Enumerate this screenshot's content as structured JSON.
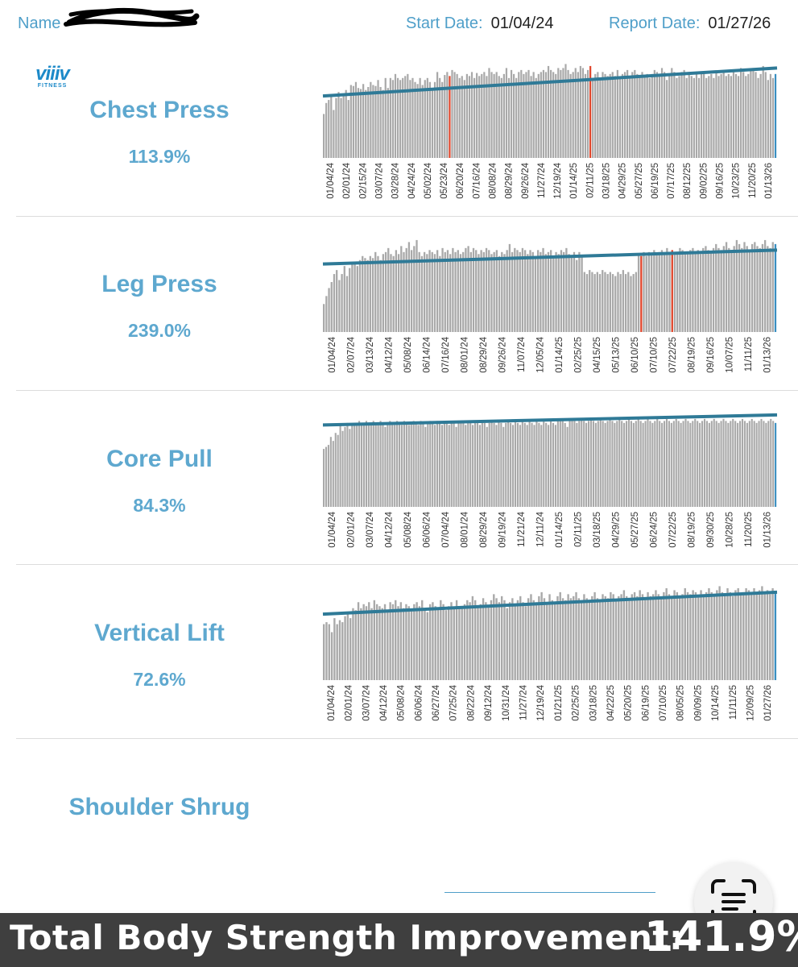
{
  "header": {
    "name_label": "Name",
    "start_label": "Start Date:",
    "start_value": "01/04/24",
    "report_label": "Report Date:",
    "report_value": "01/27/26"
  },
  "logo": {
    "line1": "viiiv",
    "line2": "FITNESS"
  },
  "colors": {
    "accent": "#5ea8cf",
    "bar": "#a9a9a9",
    "trend": "#2f7a97",
    "highlight": "#e0452b",
    "last_bar": "#3a8fc1",
    "footer_bg": "#3f3f3f"
  },
  "exercises": [
    {
      "name": "Chest Press",
      "improvement": "113.9%"
    },
    {
      "name": "Leg Press",
      "improvement": "239.0%"
    },
    {
      "name": "Core Pull",
      "improvement": "84.3%"
    },
    {
      "name": "Vertical Lift",
      "improvement": "72.6%"
    },
    {
      "name": "Shoulder Shrug"
    }
  ],
  "chart_data": [
    {
      "type": "bar",
      "title": "Chest Press",
      "tick_labels": [
        "01/04/24",
        "02/01/24",
        "02/15/24",
        "03/07/24",
        "03/28/24",
        "04/24/24",
        "05/02/24",
        "05/23/24",
        "06/20/24",
        "07/16/24",
        "08/08/24",
        "08/29/24",
        "09/26/24",
        "11/27/24",
        "12/19/24",
        "01/14/25",
        "02/11/25",
        "03/18/25",
        "04/29/25",
        "05/27/25",
        "06/19/25",
        "07/17/25",
        "08/12/25",
        "09/02/25",
        "09/16/25",
        "10/23/25",
        "11/20/25",
        "01/13/26"
      ],
      "trend": [
        0.62,
        0.9
      ],
      "highlights": [
        0.28,
        0.59
      ],
      "values": [
        0.44,
        0.55,
        0.58,
        0.63,
        0.48,
        0.6,
        0.66,
        0.6,
        0.64,
        0.68,
        0.58,
        0.73,
        0.72,
        0.76,
        0.7,
        0.69,
        0.74,
        0.68,
        0.71,
        0.76,
        0.73,
        0.72,
        0.78,
        0.71,
        0.68,
        0.8,
        0.7,
        0.8,
        0.78,
        0.84,
        0.8,
        0.78,
        0.8,
        0.82,
        0.84,
        0.78,
        0.8,
        0.76,
        0.74,
        0.8,
        0.73,
        0.78,
        0.8,
        0.76,
        0.7,
        0.76,
        0.86,
        0.8,
        0.76,
        0.83,
        0.86,
        0.82,
        0.88,
        0.86,
        0.84,
        0.8,
        0.82,
        0.78,
        0.84,
        0.82,
        0.86,
        0.8,
        0.85,
        0.82,
        0.84,
        0.86,
        0.82,
        0.9,
        0.86,
        0.84,
        0.86,
        0.82,
        0.8,
        0.84,
        0.9,
        0.8,
        0.88,
        0.84,
        0.8,
        0.86,
        0.88,
        0.84,
        0.86,
        0.88,
        0.82,
        0.86,
        0.8,
        0.84,
        0.86,
        0.88,
        0.86,
        0.92,
        0.88,
        0.86,
        0.84,
        0.9,
        0.88,
        0.9,
        0.94,
        0.88,
        0.84,
        0.86,
        0.9,
        0.86,
        0.92,
        0.9,
        0.84,
        0.88,
        0.92,
        0.8,
        0.84,
        0.86,
        0.8,
        0.86,
        0.84,
        0.82,
        0.84,
        0.86,
        0.82,
        0.88,
        0.8,
        0.84,
        0.86,
        0.88,
        0.8,
        0.86,
        0.88,
        0.84,
        0.82,
        0.86,
        0.82,
        0.84,
        0.8,
        0.84,
        0.88,
        0.86,
        0.84,
        0.9,
        0.86,
        0.78,
        0.84,
        0.9,
        0.86,
        0.8,
        0.82,
        0.86,
        0.88,
        0.8,
        0.86,
        0.82,
        0.8,
        0.84,
        0.8,
        0.86,
        0.84,
        0.8,
        0.82,
        0.84,
        0.8,
        0.86,
        0.82,
        0.84,
        0.86,
        0.82,
        0.84,
        0.82,
        0.86,
        0.84,
        0.82,
        0.9,
        0.86,
        0.82,
        0.84,
        0.88,
        0.9,
        0.86,
        0.8,
        0.84,
        0.92,
        0.86,
        0.78,
        0.84,
        0.8,
        0.84
      ]
    },
    {
      "type": "bar",
      "title": "Leg Press",
      "tick_labels": [
        "01/04/24",
        "02/07/24",
        "03/13/24",
        "04/12/24",
        "05/08/24",
        "06/14/24",
        "07/16/24",
        "08/01/24",
        "08/29/24",
        "09/26/24",
        "11/07/24",
        "12/05/24",
        "01/14/25",
        "02/25/25",
        "04/15/25",
        "05/13/25",
        "06/10/25",
        "07/10/25",
        "07/22/25",
        "08/19/25",
        "09/16/25",
        "10/07/25",
        "11/11/25",
        "01/13/26"
      ],
      "trend": [
        0.68,
        0.82
      ],
      "highlights": [
        0.705,
        0.771
      ],
      "values": [
        0.28,
        0.36,
        0.44,
        0.5,
        0.58,
        0.62,
        0.52,
        0.58,
        0.66,
        0.56,
        0.64,
        0.68,
        0.7,
        0.66,
        0.72,
        0.76,
        0.74,
        0.72,
        0.76,
        0.74,
        0.8,
        0.76,
        0.72,
        0.78,
        0.8,
        0.84,
        0.78,
        0.76,
        0.82,
        0.78,
        0.86,
        0.8,
        0.84,
        0.9,
        0.82,
        0.86,
        0.92,
        0.8,
        0.76,
        0.8,
        0.78,
        0.82,
        0.8,
        0.78,
        0.82,
        0.76,
        0.84,
        0.8,
        0.82,
        0.78,
        0.84,
        0.8,
        0.82,
        0.78,
        0.8,
        0.84,
        0.86,
        0.8,
        0.84,
        0.82,
        0.78,
        0.82,
        0.8,
        0.84,
        0.82,
        0.78,
        0.8,
        0.82,
        0.76,
        0.8,
        0.78,
        0.82,
        0.88,
        0.8,
        0.84,
        0.82,
        0.8,
        0.84,
        0.82,
        0.78,
        0.82,
        0.8,
        0.76,
        0.82,
        0.8,
        0.84,
        0.78,
        0.8,
        0.82,
        0.76,
        0.8,
        0.78,
        0.82,
        0.8,
        0.84,
        0.78,
        0.76,
        0.8,
        0.72,
        0.8,
        0.76,
        0.6,
        0.58,
        0.62,
        0.6,
        0.58,
        0.6,
        0.58,
        0.62,
        0.6,
        0.58,
        0.6,
        0.58,
        0.56,
        0.6,
        0.58,
        0.62,
        0.58,
        0.6,
        0.56,
        0.58,
        0.6,
        0.78,
        0.76,
        0.8,
        0.76,
        0.8,
        0.78,
        0.82,
        0.78,
        0.8,
        0.82,
        0.78,
        0.84,
        0.8,
        0.82,
        0.78,
        0.8,
        0.84,
        0.82,
        0.78,
        0.8,
        0.82,
        0.84,
        0.8,
        0.82,
        0.78,
        0.84,
        0.86,
        0.82,
        0.8,
        0.84,
        0.88,
        0.84,
        0.82,
        0.86,
        0.9,
        0.84,
        0.82,
        0.86,
        0.92,
        0.88,
        0.84,
        0.9,
        0.86,
        0.82,
        0.88,
        0.9,
        0.86,
        0.84,
        0.88,
        0.92,
        0.86,
        0.84,
        0.9,
        0.88
      ]
    },
    {
      "type": "bar",
      "title": "Core Pull",
      "tick_labels": [
        "01/04/24",
        "02/01/24",
        "03/07/24",
        "04/12/24",
        "05/08/24",
        "06/06/24",
        "07/04/24",
        "08/01/24",
        "08/29/24",
        "09/19/24",
        "11/21/24",
        "12/11/24",
        "01/14/25",
        "02/11/25",
        "03/18/25",
        "04/29/25",
        "05/27/25",
        "06/24/25",
        "07/22/25",
        "08/19/25",
        "09/30/25",
        "10/28/25",
        "11/20/25",
        "01/13/26"
      ],
      "trend": [
        0.82,
        0.92
      ],
      "highlights": [],
      "values": [
        0.58,
        0.6,
        0.62,
        0.7,
        0.66,
        0.74,
        0.72,
        0.82,
        0.76,
        0.8,
        0.84,
        0.78,
        0.82,
        0.84,
        0.82,
        0.86,
        0.82,
        0.84,
        0.86,
        0.84,
        0.82,
        0.86,
        0.84,
        0.82,
        0.86,
        0.84,
        0.8,
        0.84,
        0.86,
        0.84,
        0.82,
        0.86,
        0.84,
        0.82,
        0.86,
        0.84,
        0.82,
        0.84,
        0.86,
        0.84,
        0.82,
        0.86,
        0.84,
        0.8,
        0.84,
        0.86,
        0.84,
        0.82,
        0.86,
        0.84,
        0.82,
        0.86,
        0.84,
        0.82,
        0.86,
        0.84,
        0.8,
        0.84,
        0.86,
        0.84,
        0.82,
        0.86,
        0.84,
        0.82,
        0.86,
        0.84,
        0.82,
        0.86,
        0.84,
        0.8,
        0.84,
        0.86,
        0.84,
        0.82,
        0.86,
        0.84,
        0.8,
        0.84,
        0.86,
        0.84,
        0.82,
        0.86,
        0.84,
        0.82,
        0.86,
        0.84,
        0.82,
        0.86,
        0.84,
        0.82,
        0.86,
        0.84,
        0.82,
        0.86,
        0.84,
        0.82,
        0.86,
        0.84,
        0.82,
        0.86,
        0.88,
        0.86,
        0.84,
        0.8,
        0.86,
        0.88,
        0.86,
        0.84,
        0.86,
        0.88,
        0.86,
        0.84,
        0.86,
        0.88,
        0.86,
        0.84,
        0.86,
        0.88,
        0.86,
        0.84,
        0.86,
        0.88,
        0.86,
        0.84,
        0.86,
        0.88,
        0.86,
        0.84,
        0.86,
        0.88,
        0.86,
        0.84,
        0.86,
        0.88,
        0.86,
        0.84,
        0.86,
        0.88,
        0.86,
        0.84,
        0.86,
        0.88,
        0.86,
        0.84,
        0.86,
        0.88,
        0.86,
        0.84,
        0.86,
        0.88,
        0.86,
        0.84,
        0.86,
        0.88,
        0.86,
        0.84,
        0.86,
        0.88,
        0.86,
        0.84,
        0.86,
        0.88,
        0.86,
        0.84,
        0.86,
        0.88,
        0.86,
        0.84,
        0.86,
        0.88,
        0.86,
        0.84,
        0.86,
        0.88,
        0.86,
        0.84,
        0.86,
        0.88,
        0.86,
        0.84,
        0.86,
        0.88,
        0.86,
        0.84,
        0.86,
        0.88,
        0.86,
        0.84,
        0.86,
        0.88,
        0.86,
        0.84
      ]
    },
    {
      "type": "bar",
      "title": "Vertical Lift",
      "tick_labels": [
        "01/04/24",
        "02/01/24",
        "03/07/24",
        "04/12/24",
        "05/08/24",
        "06/06/24",
        "06/27/24",
        "07/25/24",
        "08/22/24",
        "09/12/24",
        "10/31/24",
        "11/27/24",
        "12/19/24",
        "01/21/25",
        "02/25/25",
        "03/18/25",
        "04/22/25",
        "05/20/25",
        "06/19/25",
        "07/10/25",
        "08/05/25",
        "09/09/25",
        "10/14/25",
        "11/11/25",
        "12/09/25",
        "01/27/26"
      ],
      "trend": [
        0.66,
        0.88
      ],
      "highlights": [],
      "values": [
        0.56,
        0.58,
        0.56,
        0.48,
        0.62,
        0.56,
        0.6,
        0.58,
        0.64,
        0.66,
        0.62,
        0.72,
        0.7,
        0.78,
        0.72,
        0.76,
        0.74,
        0.78,
        0.72,
        0.8,
        0.76,
        0.74,
        0.72,
        0.76,
        0.7,
        0.78,
        0.76,
        0.8,
        0.74,
        0.78,
        0.72,
        0.76,
        0.74,
        0.7,
        0.76,
        0.78,
        0.74,
        0.8,
        0.72,
        0.68,
        0.76,
        0.78,
        0.74,
        0.72,
        0.8,
        0.76,
        0.7,
        0.74,
        0.78,
        0.72,
        0.8,
        0.74,
        0.72,
        0.76,
        0.8,
        0.78,
        0.84,
        0.8,
        0.74,
        0.76,
        0.82,
        0.78,
        0.74,
        0.8,
        0.86,
        0.82,
        0.78,
        0.84,
        0.8,
        0.72,
        0.78,
        0.82,
        0.76,
        0.8,
        0.84,
        0.78,
        0.74,
        0.82,
        0.86,
        0.8,
        0.78,
        0.84,
        0.88,
        0.82,
        0.78,
        0.86,
        0.8,
        0.76,
        0.84,
        0.88,
        0.82,
        0.8,
        0.86,
        0.82,
        0.84,
        0.88,
        0.82,
        0.78,
        0.86,
        0.82,
        0.8,
        0.84,
        0.88,
        0.82,
        0.8,
        0.86,
        0.84,
        0.82,
        0.88,
        0.86,
        0.8,
        0.84,
        0.86,
        0.9,
        0.84,
        0.82,
        0.86,
        0.88,
        0.84,
        0.9,
        0.86,
        0.82,
        0.88,
        0.84,
        0.86,
        0.9,
        0.86,
        0.82,
        0.88,
        0.92,
        0.86,
        0.84,
        0.9,
        0.88,
        0.84,
        0.86,
        0.92,
        0.88,
        0.86,
        0.9,
        0.88,
        0.84,
        0.9,
        0.86,
        0.88,
        0.92,
        0.88,
        0.86,
        0.9,
        0.94,
        0.88,
        0.86,
        0.92,
        0.88,
        0.84,
        0.9,
        0.92,
        0.86,
        0.88,
        0.92,
        0.9,
        0.86,
        0.92,
        0.88,
        0.9,
        0.94,
        0.88,
        0.9,
        0.86,
        0.92,
        0.88
      ]
    }
  ],
  "footer": {
    "label": "Total Body Strength Improvement:",
    "value": "141.9%"
  }
}
